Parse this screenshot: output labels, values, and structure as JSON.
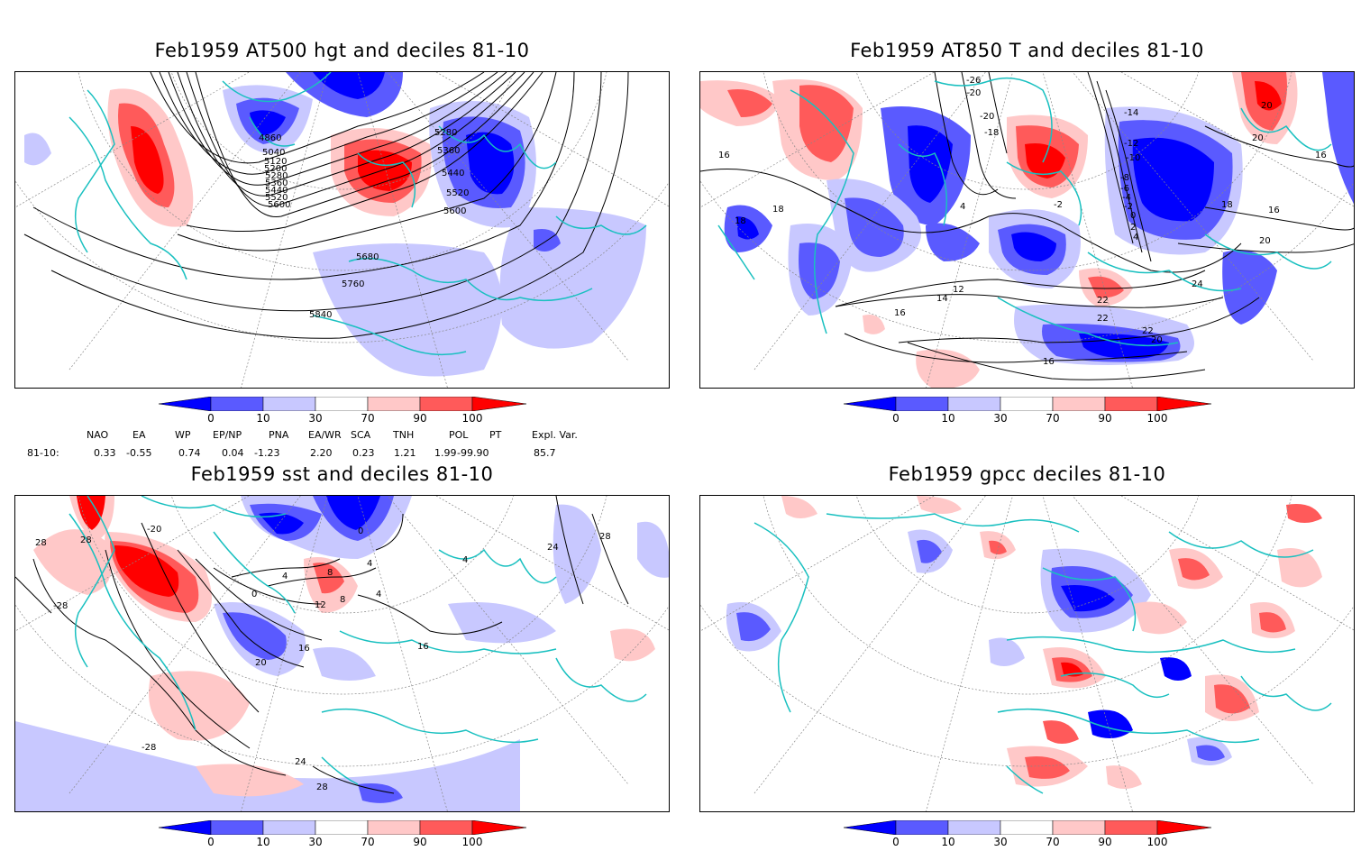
{
  "panels": [
    {
      "title": "Feb1959 AT500 hgt and deciles 81-10",
      "contour_labels": [
        "4860",
        "5040",
        "5120",
        "5200",
        "5280",
        "5360",
        "5440",
        "5520",
        "5600",
        "5280",
        "5360",
        "5440",
        "5520",
        "5600",
        "5680",
        "5760",
        "5840"
      ]
    },
    {
      "title": "Feb1959 AT850 T and deciles 81-10",
      "contour_labels": [
        "-26",
        "-20",
        "-20",
        "-18",
        "-14",
        "-12",
        "-10",
        "-8",
        "-6",
        "-4",
        "-2",
        "0",
        "2",
        "4",
        "-2",
        "4",
        "16",
        "18",
        "18",
        "16",
        "16",
        "20",
        "20",
        "12",
        "14",
        "16",
        "18",
        "20",
        "22",
        "22",
        "22",
        "24",
        "20",
        "16"
      ]
    },
    {
      "title": "Feb1959 sst and deciles 81-10",
      "contour_labels": [
        "28",
        "28",
        "-20",
        "0",
        "4",
        "8",
        "12",
        "16",
        "20",
        "24",
        "28",
        "-28",
        "28",
        "24",
        "16",
        "4",
        "-28",
        "0",
        "4",
        "8",
        "4"
      ]
    },
    {
      "title": "Feb1959 gpcc deciles 81-10",
      "contour_labels": []
    }
  ],
  "colorbar": {
    "ticks": [
      "0",
      "10",
      "30",
      "70",
      "90",
      "100"
    ],
    "colors": [
      "#0000ff",
      "#5a5aff",
      "#c8c8ff",
      "#ffffff",
      "#ffc8c8",
      "#ff5a5a",
      "#ff0000"
    ]
  },
  "indices": {
    "headers": [
      "NAO",
      "EA",
      "WP",
      "EP/NP",
      "PNA",
      "EA/WR",
      "SCA",
      "TNH",
      "POL",
      "PT",
      "Expl. Var."
    ],
    "row_label": "81-10:",
    "values": [
      "0.33",
      "-0.55",
      "0.74",
      "0.04",
      "-1.23",
      "2.20",
      "0.23",
      "1.21",
      "1.99",
      "-99.90",
      "85.7"
    ]
  },
  "colors": {
    "coast": "#19c0c0",
    "grid": "#888888",
    "contour": "#000000"
  }
}
